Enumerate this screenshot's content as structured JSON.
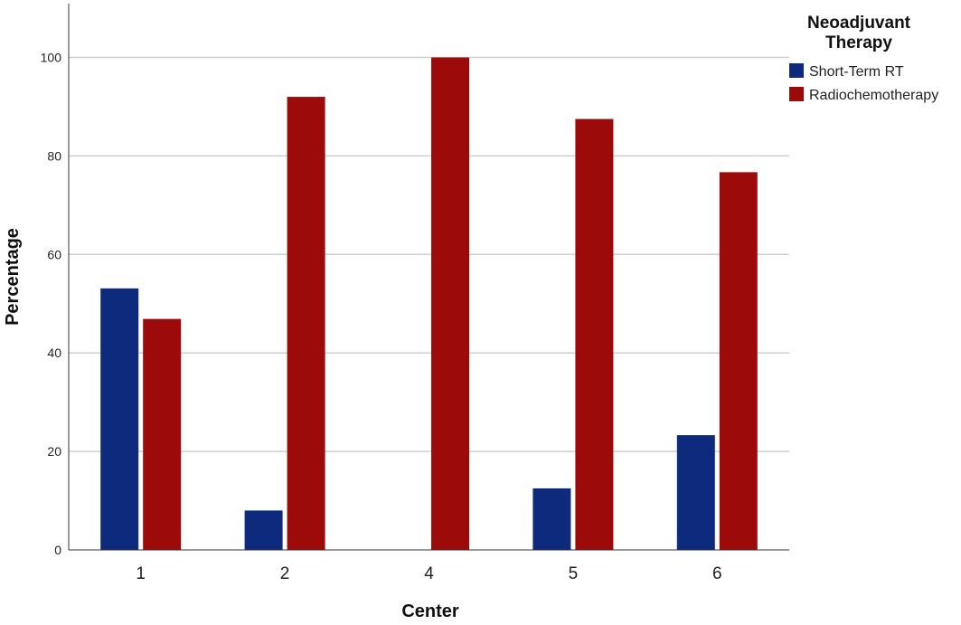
{
  "chart_data": {
    "type": "bar",
    "categories": [
      "1",
      "2",
      "4",
      "5",
      "6"
    ],
    "series": [
      {
        "name": "Short-Term RT",
        "color": "#0d2a7c",
        "values": [
          53.1,
          8.0,
          0,
          12.5,
          23.3
        ]
      },
      {
        "name": "Radiochemotherapy",
        "color": "#9c0a0a",
        "values": [
          46.9,
          92.0,
          100,
          87.5,
          76.7
        ]
      }
    ],
    "xlabel": "Center",
    "ylabel": "Percentage",
    "ylim": [
      0,
      110
    ],
    "yticks": [
      0,
      20,
      40,
      60,
      80,
      100
    ],
    "grid": true,
    "legend": {
      "title_lines": [
        "Neoadjuvant",
        "Therapy"
      ],
      "placement": "top-right"
    }
  }
}
